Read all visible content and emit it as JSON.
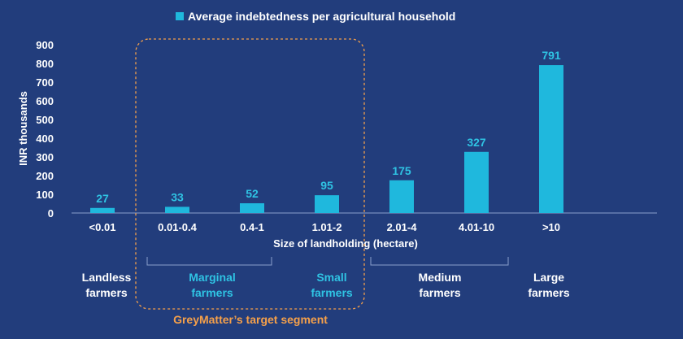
{
  "chart_data": {
    "type": "bar",
    "legend": "Average indebtedness per agricultural household",
    "legend_position": "top",
    "ylabel": "INR thousands",
    "xlabel": "Size of landholding (hectare)",
    "categories": [
      "<0.01",
      "0.01-0.4",
      "0.4-1",
      "1.01-2",
      "2.01-4",
      "4.01-10",
      ">10"
    ],
    "values": [
      27,
      33,
      52,
      95,
      175,
      327,
      791
    ],
    "ylim": [
      0,
      900
    ],
    "yticks": [
      0,
      100,
      200,
      300,
      400,
      500,
      600,
      700,
      800,
      900
    ],
    "grid": false,
    "bar_color": "#1fb8dd",
    "groups": [
      {
        "lines": [
          "Landless",
          "farmers"
        ],
        "color": "white"
      },
      {
        "lines": [
          "Marginal",
          "farmers"
        ],
        "color": "cyan"
      },
      {
        "lines": [
          "Small",
          "farmers"
        ],
        "color": "cyan"
      },
      {
        "lines": [
          "Medium",
          "farmers"
        ],
        "color": "white"
      },
      {
        "lines": [
          "Large",
          "farmers"
        ],
        "color": "white"
      }
    ],
    "target_segment_label": "GreyMatter’s target segment"
  },
  "colors": {
    "background": "#223d7c",
    "bar": "#1fb8dd",
    "value_label": "#2fc3e3",
    "target_box": "#f5a04a"
  }
}
